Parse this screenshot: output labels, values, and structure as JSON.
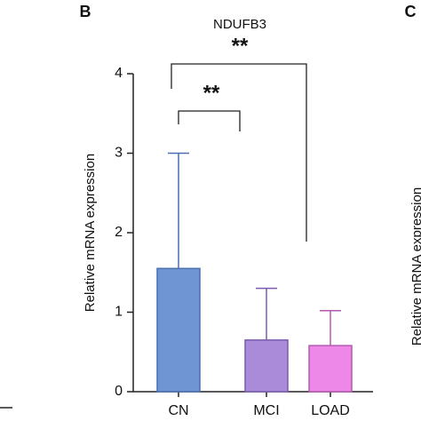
{
  "chart_data": {
    "type": "bar",
    "title": "NDUFB3",
    "y_label": "Relative mRNA expression",
    "categories": [
      "CN",
      "MCI",
      "LOAD"
    ],
    "values": [
      1.55,
      0.65,
      0.58
    ],
    "errors": [
      1.45,
      0.65,
      0.44
    ],
    "colors": [
      "#6f95d2",
      "#a98bd9",
      "#ee88e8"
    ],
    "edge_colors": [
      "#4a6fb0",
      "#7b5cb0",
      "#b35ab0"
    ],
    "ylim": [
      0,
      4
    ],
    "yticks": [
      0,
      1,
      2,
      3,
      4
    ],
    "grid": false,
    "annotations": [
      "**",
      "**"
    ]
  },
  "panel_labels": [
    "B",
    "C"
  ],
  "panel_c_y_label": "Relative mRNA expression"
}
